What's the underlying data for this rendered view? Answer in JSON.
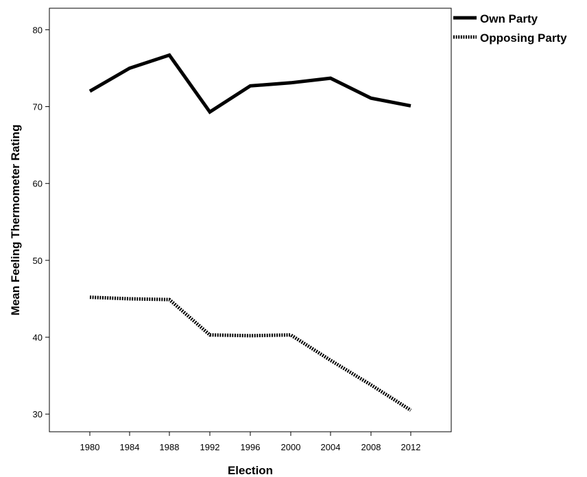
{
  "chart_data": {
    "type": "line",
    "title": "",
    "xlabel": "Election",
    "ylabel": "Mean Feeling Thermometer Rating",
    "x": [
      1980,
      1984,
      1988,
      1992,
      1996,
      2000,
      2004,
      2008,
      2012
    ],
    "x_tick_labels": [
      "1980",
      "1984",
      "1988",
      "1992",
      "1996",
      "2000",
      "2004",
      "2008",
      "2012"
    ],
    "ylim": [
      27.7,
      82.8
    ],
    "y_ticks": [
      30,
      40,
      50,
      60,
      70,
      80
    ],
    "y_tick_labels": [
      "30",
      "40",
      "50",
      "60",
      "70",
      "80"
    ],
    "grid": false,
    "legend_position": "top-right, outside plot",
    "series": [
      {
        "name": "Own Party",
        "style": "solid",
        "color": "#000000",
        "values": [
          72.0,
          75.0,
          76.7,
          69.3,
          72.7,
          73.1,
          73.7,
          71.1,
          70.1
        ]
      },
      {
        "name": "Opposing Party",
        "style": "dotted",
        "color": "#000000",
        "values": [
          45.2,
          45.0,
          44.9,
          40.3,
          40.2,
          40.3,
          37.0,
          33.8,
          30.5
        ]
      }
    ]
  }
}
